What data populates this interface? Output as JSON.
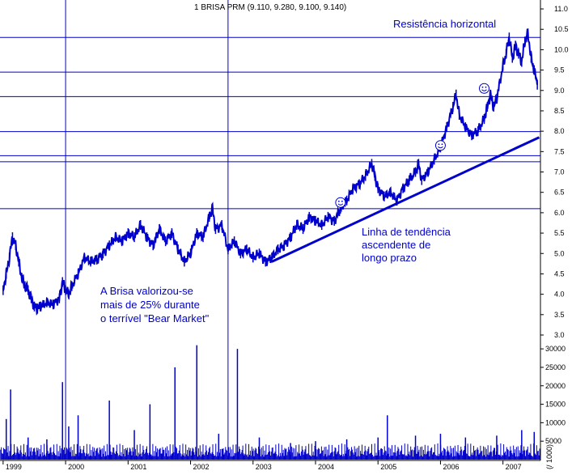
{
  "chart_data": {
    "type": "line",
    "title": "1 BRISA PRM (9.110, 9.280, 9.100, 9.140)",
    "colors": {
      "price": "#0000cc",
      "grid": "#0000cc",
      "volume": "#0000cc",
      "background": "#ffffff",
      "axis_text": "#000000"
    },
    "x_axis": {
      "range": [
        1998.95,
        2007.6
      ],
      "tick_labels": [
        "1999",
        "2000",
        "2001",
        "2002",
        "2003",
        "2004",
        "2005",
        "2006",
        "2007"
      ],
      "ticks": [
        1999,
        2000,
        2001,
        2002,
        2003,
        2004,
        2005,
        2006,
        2007
      ]
    },
    "price_axis": {
      "range": [
        3.0,
        11.1
      ],
      "tick_labels": [
        "3.0",
        "3.5",
        "4.0",
        "4.5",
        "5.0",
        "5.5",
        "6.0",
        "6.5",
        "7.0",
        "7.5",
        "8.0",
        "8.5",
        "9.0",
        "9.5",
        "10.0",
        "10.5",
        "11.0"
      ],
      "ticks": [
        3.0,
        3.5,
        4.0,
        4.5,
        5.0,
        5.5,
        6.0,
        6.5,
        7.0,
        7.5,
        8.0,
        8.5,
        9.0,
        9.5,
        10.0,
        10.5,
        11.0
      ]
    },
    "volume_axis": {
      "range": [
        0,
        32000
      ],
      "tick_labels": [
        "5000",
        "10000",
        "15000",
        "20000",
        "25000",
        "30000"
      ],
      "ticks": [
        5000,
        10000,
        15000,
        20000,
        25000,
        30000
      ],
      "unit_label": "(/ 1000)"
    },
    "horizontal_lines": [
      10.3,
      9.45,
      8.85,
      7.99,
      7.4,
      7.25,
      6.1
    ],
    "vertical_lines": [
      2000.0,
      2002.6
    ],
    "price_series": [
      {
        "x": 1999.0,
        "y": 4.1
      },
      {
        "x": 1999.05,
        "y": 4.5
      },
      {
        "x": 1999.1,
        "y": 4.9
      },
      {
        "x": 1999.15,
        "y": 5.4
      },
      {
        "x": 1999.2,
        "y": 5.2
      },
      {
        "x": 1999.25,
        "y": 4.8
      },
      {
        "x": 1999.3,
        "y": 4.4
      },
      {
        "x": 1999.35,
        "y": 4.2
      },
      {
        "x": 1999.4,
        "y": 4.1
      },
      {
        "x": 1999.45,
        "y": 3.9
      },
      {
        "x": 1999.5,
        "y": 3.7
      },
      {
        "x": 1999.55,
        "y": 3.65
      },
      {
        "x": 1999.6,
        "y": 3.7
      },
      {
        "x": 1999.7,
        "y": 3.8
      },
      {
        "x": 1999.8,
        "y": 3.75
      },
      {
        "x": 1999.9,
        "y": 3.9
      },
      {
        "x": 1999.95,
        "y": 4.3
      },
      {
        "x": 2000.0,
        "y": 4.1
      },
      {
        "x": 2000.05,
        "y": 4.0
      },
      {
        "x": 2000.1,
        "y": 4.2
      },
      {
        "x": 2000.2,
        "y": 4.5
      },
      {
        "x": 2000.3,
        "y": 4.9
      },
      {
        "x": 2000.4,
        "y": 4.8
      },
      {
        "x": 2000.5,
        "y": 4.85
      },
      {
        "x": 2000.6,
        "y": 5.0
      },
      {
        "x": 2000.7,
        "y": 5.2
      },
      {
        "x": 2000.8,
        "y": 5.4
      },
      {
        "x": 2000.9,
        "y": 5.3
      },
      {
        "x": 2001.0,
        "y": 5.5
      },
      {
        "x": 2001.1,
        "y": 5.4
      },
      {
        "x": 2001.2,
        "y": 5.7
      },
      {
        "x": 2001.3,
        "y": 5.4
      },
      {
        "x": 2001.4,
        "y": 5.2
      },
      {
        "x": 2001.5,
        "y": 5.6
      },
      {
        "x": 2001.6,
        "y": 5.3
      },
      {
        "x": 2001.7,
        "y": 5.5
      },
      {
        "x": 2001.8,
        "y": 5.1
      },
      {
        "x": 2001.9,
        "y": 4.8
      },
      {
        "x": 2002.0,
        "y": 5.0
      },
      {
        "x": 2002.1,
        "y": 5.5
      },
      {
        "x": 2002.2,
        "y": 5.4
      },
      {
        "x": 2002.3,
        "y": 5.9
      },
      {
        "x": 2002.35,
        "y": 6.1
      },
      {
        "x": 2002.4,
        "y": 5.6
      },
      {
        "x": 2002.5,
        "y": 5.7
      },
      {
        "x": 2002.6,
        "y": 5.1
      },
      {
        "x": 2002.7,
        "y": 5.3
      },
      {
        "x": 2002.8,
        "y": 5.0
      },
      {
        "x": 2002.9,
        "y": 5.1
      },
      {
        "x": 2003.0,
        "y": 4.9
      },
      {
        "x": 2003.1,
        "y": 5.0
      },
      {
        "x": 2003.2,
        "y": 4.8
      },
      {
        "x": 2003.3,
        "y": 4.9
      },
      {
        "x": 2003.4,
        "y": 5.1
      },
      {
        "x": 2003.5,
        "y": 5.2
      },
      {
        "x": 2003.6,
        "y": 5.4
      },
      {
        "x": 2003.7,
        "y": 5.7
      },
      {
        "x": 2003.8,
        "y": 5.6
      },
      {
        "x": 2003.9,
        "y": 5.9
      },
      {
        "x": 2004.0,
        "y": 5.8
      },
      {
        "x": 2004.1,
        "y": 5.7
      },
      {
        "x": 2004.2,
        "y": 5.9
      },
      {
        "x": 2004.3,
        "y": 5.8
      },
      {
        "x": 2004.4,
        "y": 6.1
      },
      {
        "x": 2004.5,
        "y": 6.3
      },
      {
        "x": 2004.6,
        "y": 6.6
      },
      {
        "x": 2004.7,
        "y": 6.7
      },
      {
        "x": 2004.8,
        "y": 6.9
      },
      {
        "x": 2004.9,
        "y": 7.2
      },
      {
        "x": 2004.95,
        "y": 6.9
      },
      {
        "x": 2005.0,
        "y": 6.6
      },
      {
        "x": 2005.1,
        "y": 6.4
      },
      {
        "x": 2005.2,
        "y": 6.5
      },
      {
        "x": 2005.3,
        "y": 6.3
      },
      {
        "x": 2005.4,
        "y": 6.6
      },
      {
        "x": 2005.5,
        "y": 6.8
      },
      {
        "x": 2005.6,
        "y": 7.0
      },
      {
        "x": 2005.65,
        "y": 7.2
      },
      {
        "x": 2005.7,
        "y": 6.8
      },
      {
        "x": 2005.8,
        "y": 7.0
      },
      {
        "x": 2005.9,
        "y": 7.3
      },
      {
        "x": 2006.0,
        "y": 7.6
      },
      {
        "x": 2006.1,
        "y": 8.1
      },
      {
        "x": 2006.2,
        "y": 8.6
      },
      {
        "x": 2006.25,
        "y": 8.9
      },
      {
        "x": 2006.3,
        "y": 8.4
      },
      {
        "x": 2006.4,
        "y": 8.1
      },
      {
        "x": 2006.5,
        "y": 7.9
      },
      {
        "x": 2006.6,
        "y": 8.0
      },
      {
        "x": 2006.7,
        "y": 8.3
      },
      {
        "x": 2006.75,
        "y": 8.6
      },
      {
        "x": 2006.8,
        "y": 8.9
      },
      {
        "x": 2006.85,
        "y": 8.6
      },
      {
        "x": 2006.9,
        "y": 8.8
      },
      {
        "x": 2007.0,
        "y": 9.6
      },
      {
        "x": 2007.05,
        "y": 9.9
      },
      {
        "x": 2007.1,
        "y": 10.3
      },
      {
        "x": 2007.15,
        "y": 9.8
      },
      {
        "x": 2007.2,
        "y": 10.1
      },
      {
        "x": 2007.25,
        "y": 9.9
      },
      {
        "x": 2007.3,
        "y": 9.7
      },
      {
        "x": 2007.35,
        "y": 10.2
      },
      {
        "x": 2007.4,
        "y": 10.4
      },
      {
        "x": 2007.45,
        "y": 9.8
      },
      {
        "x": 2007.5,
        "y": 9.5
      },
      {
        "x": 2007.55,
        "y": 9.14
      }
    ],
    "trend_line": {
      "start": {
        "x": 2003.3,
        "y": 4.8
      },
      "end": {
        "x": 2007.58,
        "y": 7.85
      }
    },
    "volume_series": [
      {
        "x": 1999.05,
        "y": 11000
      },
      {
        "x": 1999.12,
        "y": 19000
      },
      {
        "x": 1999.4,
        "y": 6000
      },
      {
        "x": 1999.7,
        "y": 5500
      },
      {
        "x": 1999.95,
        "y": 21000
      },
      {
        "x": 2000.05,
        "y": 9000
      },
      {
        "x": 2000.2,
        "y": 12000
      },
      {
        "x": 2000.7,
        "y": 16000
      },
      {
        "x": 2001.1,
        "y": 8000
      },
      {
        "x": 2001.35,
        "y": 15000
      },
      {
        "x": 2001.75,
        "y": 25000
      },
      {
        "x": 2002.1,
        "y": 31000
      },
      {
        "x": 2002.45,
        "y": 7000
      },
      {
        "x": 2002.75,
        "y": 30000
      },
      {
        "x": 2003.1,
        "y": 6000
      },
      {
        "x": 2003.6,
        "y": 4500
      },
      {
        "x": 2004.0,
        "y": 5000
      },
      {
        "x": 2004.5,
        "y": 5500
      },
      {
        "x": 2005.0,
        "y": 6000
      },
      {
        "x": 2005.15,
        "y": 12000
      },
      {
        "x": 2005.6,
        "y": 6500
      },
      {
        "x": 2006.0,
        "y": 7000
      },
      {
        "x": 2006.4,
        "y": 6000
      },
      {
        "x": 2006.9,
        "y": 6500
      },
      {
        "x": 2007.3,
        "y": 8000
      },
      {
        "x": 2007.5,
        "y": 7500
      }
    ],
    "annotations": {
      "resistance_label": "Resistência horizontal",
      "trend_label_line1": "Linha de tendência",
      "trend_label_line2": "ascendente de",
      "trend_label_line3": "longo prazo",
      "bear_label_line1": "A Brisa valorizou-se",
      "bear_label_line2": "mais de 25%  durante",
      "bear_label_line3": "o terrível \"Bear Market\""
    },
    "smileys": [
      {
        "x": 2004.4,
        "y": 6.25
      },
      {
        "x": 2006.0,
        "y": 7.65
      },
      {
        "x": 2006.7,
        "y": 9.05
      }
    ]
  }
}
